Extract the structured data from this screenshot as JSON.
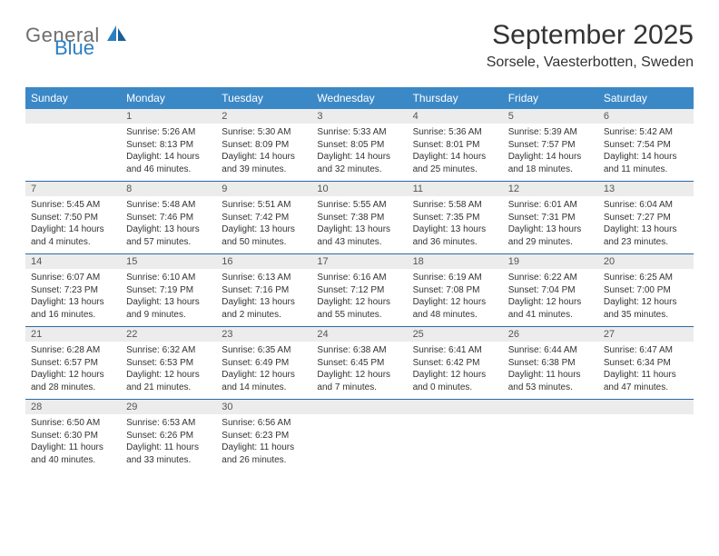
{
  "logo": {
    "general": "General",
    "blue": "Blue"
  },
  "title": "September 2025",
  "location": "Sorsele, Vaesterbotten, Sweden",
  "colors": {
    "header_bg": "#3b88c7",
    "header_text": "#ffffff",
    "daynum_bg": "#ececec",
    "daynum_text": "#555555",
    "body_text": "#333333",
    "rule": "#2b6aa3",
    "logo_gray": "#6e6e6e",
    "logo_blue": "#2b7fc3",
    "page_bg": "#ffffff"
  },
  "day_headers": [
    "Sunday",
    "Monday",
    "Tuesday",
    "Wednesday",
    "Thursday",
    "Friday",
    "Saturday"
  ],
  "weeks": [
    [
      null,
      {
        "n": "1",
        "sr": "5:26 AM",
        "ss": "8:13 PM",
        "dl": "14 hours and 46 minutes."
      },
      {
        "n": "2",
        "sr": "5:30 AM",
        "ss": "8:09 PM",
        "dl": "14 hours and 39 minutes."
      },
      {
        "n": "3",
        "sr": "5:33 AM",
        "ss": "8:05 PM",
        "dl": "14 hours and 32 minutes."
      },
      {
        "n": "4",
        "sr": "5:36 AM",
        "ss": "8:01 PM",
        "dl": "14 hours and 25 minutes."
      },
      {
        "n": "5",
        "sr": "5:39 AM",
        "ss": "7:57 PM",
        "dl": "14 hours and 18 minutes."
      },
      {
        "n": "6",
        "sr": "5:42 AM",
        "ss": "7:54 PM",
        "dl": "14 hours and 11 minutes."
      }
    ],
    [
      {
        "n": "7",
        "sr": "5:45 AM",
        "ss": "7:50 PM",
        "dl": "14 hours and 4 minutes."
      },
      {
        "n": "8",
        "sr": "5:48 AM",
        "ss": "7:46 PM",
        "dl": "13 hours and 57 minutes."
      },
      {
        "n": "9",
        "sr": "5:51 AM",
        "ss": "7:42 PM",
        "dl": "13 hours and 50 minutes."
      },
      {
        "n": "10",
        "sr": "5:55 AM",
        "ss": "7:38 PM",
        "dl": "13 hours and 43 minutes."
      },
      {
        "n": "11",
        "sr": "5:58 AM",
        "ss": "7:35 PM",
        "dl": "13 hours and 36 minutes."
      },
      {
        "n": "12",
        "sr": "6:01 AM",
        "ss": "7:31 PM",
        "dl": "13 hours and 29 minutes."
      },
      {
        "n": "13",
        "sr": "6:04 AM",
        "ss": "7:27 PM",
        "dl": "13 hours and 23 minutes."
      }
    ],
    [
      {
        "n": "14",
        "sr": "6:07 AM",
        "ss": "7:23 PM",
        "dl": "13 hours and 16 minutes."
      },
      {
        "n": "15",
        "sr": "6:10 AM",
        "ss": "7:19 PM",
        "dl": "13 hours and 9 minutes."
      },
      {
        "n": "16",
        "sr": "6:13 AM",
        "ss": "7:16 PM",
        "dl": "13 hours and 2 minutes."
      },
      {
        "n": "17",
        "sr": "6:16 AM",
        "ss": "7:12 PM",
        "dl": "12 hours and 55 minutes."
      },
      {
        "n": "18",
        "sr": "6:19 AM",
        "ss": "7:08 PM",
        "dl": "12 hours and 48 minutes."
      },
      {
        "n": "19",
        "sr": "6:22 AM",
        "ss": "7:04 PM",
        "dl": "12 hours and 41 minutes."
      },
      {
        "n": "20",
        "sr": "6:25 AM",
        "ss": "7:00 PM",
        "dl": "12 hours and 35 minutes."
      }
    ],
    [
      {
        "n": "21",
        "sr": "6:28 AM",
        "ss": "6:57 PM",
        "dl": "12 hours and 28 minutes."
      },
      {
        "n": "22",
        "sr": "6:32 AM",
        "ss": "6:53 PM",
        "dl": "12 hours and 21 minutes."
      },
      {
        "n": "23",
        "sr": "6:35 AM",
        "ss": "6:49 PM",
        "dl": "12 hours and 14 minutes."
      },
      {
        "n": "24",
        "sr": "6:38 AM",
        "ss": "6:45 PM",
        "dl": "12 hours and 7 minutes."
      },
      {
        "n": "25",
        "sr": "6:41 AM",
        "ss": "6:42 PM",
        "dl": "12 hours and 0 minutes."
      },
      {
        "n": "26",
        "sr": "6:44 AM",
        "ss": "6:38 PM",
        "dl": "11 hours and 53 minutes."
      },
      {
        "n": "27",
        "sr": "6:47 AM",
        "ss": "6:34 PM",
        "dl": "11 hours and 47 minutes."
      }
    ],
    [
      {
        "n": "28",
        "sr": "6:50 AM",
        "ss": "6:30 PM",
        "dl": "11 hours and 40 minutes."
      },
      {
        "n": "29",
        "sr": "6:53 AM",
        "ss": "6:26 PM",
        "dl": "11 hours and 33 minutes."
      },
      {
        "n": "30",
        "sr": "6:56 AM",
        "ss": "6:23 PM",
        "dl": "11 hours and 26 minutes."
      },
      null,
      null,
      null,
      null
    ]
  ],
  "labels": {
    "sunrise": "Sunrise:",
    "sunset": "Sunset:",
    "daylight": "Daylight:"
  }
}
